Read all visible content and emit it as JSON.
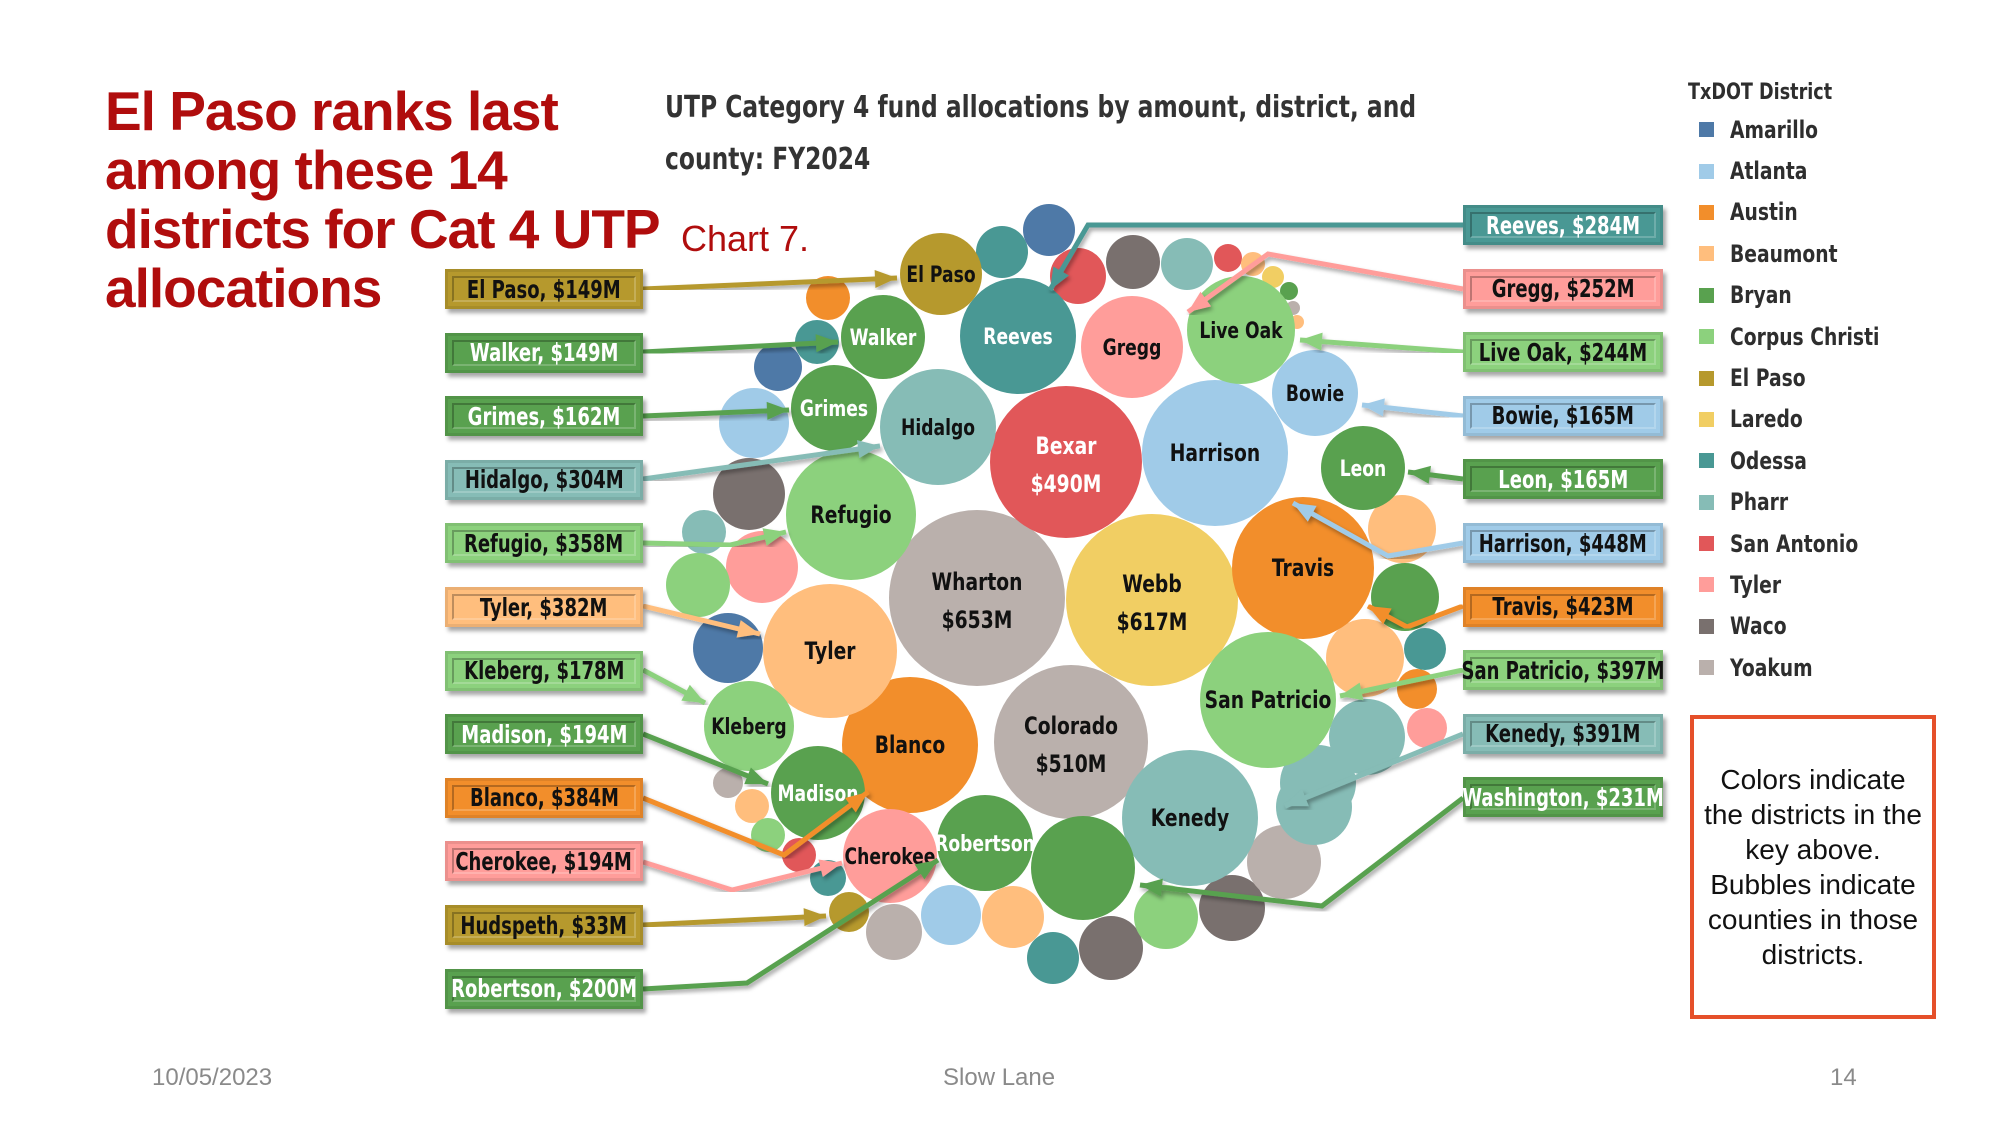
{
  "slide": {
    "title": "El Paso ranks last among these 14 districts for Cat 4 UTP allocations",
    "chart_label": "Chart 7.",
    "note": "Colors indicate the districts in the key above. Bubbles indicate counties in those districts.",
    "footer": {
      "date": "10/05/2023",
      "center": "Slow Lane",
      "page": "14"
    }
  },
  "colors": {
    "Amarillo": "#4e79a7",
    "Atlanta": "#a0cbe8",
    "Austin": "#f28e2b",
    "Beaumont": "#ffbe7d",
    "Bryan": "#59a14f",
    "Corpus Christi": "#8cd17d",
    "El Paso": "#b6992d",
    "Laredo": "#f1ce63",
    "Odessa": "#499894",
    "Pharr": "#86bcb6",
    "San Antonio": "#e15759",
    "Tyler": "#ff9d9a",
    "Waco": "#79706e",
    "Yoakum": "#bab0ac",
    "title_red": "#b00d0d",
    "note_border": "#e5502a"
  },
  "chart_data": {
    "type": "bubble",
    "title": "UTP Category 4 fund allocations by amount, district, and county: FY2024",
    "legend_title": "TxDOT District",
    "legend_position": "top-right",
    "legend": [
      "Amarillo",
      "Atlanta",
      "Austin",
      "Beaumont",
      "Bryan",
      "Corpus Christi",
      "El Paso",
      "Laredo",
      "Odessa",
      "Pharr",
      "San Antonio",
      "Tyler",
      "Waco",
      "Yoakum"
    ],
    "size_unit": "$M",
    "counties": [
      {
        "county": "Wharton",
        "district": "Yoakum",
        "value": 653,
        "label": "Wharton",
        "sublabel": "$653M",
        "text": "dark"
      },
      {
        "county": "Webb",
        "district": "Laredo",
        "value": 617,
        "label": "Webb",
        "sublabel": "$617M",
        "text": "dark"
      },
      {
        "county": "Colorado",
        "district": "Yoakum",
        "value": 510,
        "label": "Colorado",
        "sublabel": "$510M",
        "text": "dark"
      },
      {
        "county": "Bexar",
        "district": "San Antonio",
        "value": 490,
        "label": "Bexar",
        "sublabel": "$490M",
        "text": "light"
      },
      {
        "county": "Harrison",
        "district": "Atlanta",
        "value": 448,
        "label": "Harrison",
        "text": "dark"
      },
      {
        "county": "Travis",
        "district": "Austin",
        "value": 423,
        "label": "Travis",
        "text": "dark"
      },
      {
        "county": "San Patricio",
        "district": "Corpus Christi",
        "value": 397,
        "label": "San Patricio",
        "text": "dark"
      },
      {
        "county": "Kenedy",
        "district": "Pharr",
        "value": 391,
        "label": "Kenedy",
        "text": "dark"
      },
      {
        "county": "Blanco",
        "district": "Austin",
        "value": 384,
        "label": "Blanco",
        "text": "dark"
      },
      {
        "county": "Tyler",
        "district": "Beaumont",
        "value": 382,
        "label": "Tyler",
        "text": "dark"
      },
      {
        "county": "Refugio",
        "district": "Corpus Christi",
        "value": 358,
        "label": "Refugio",
        "text": "dark"
      },
      {
        "county": "Hidalgo",
        "district": "Pharr",
        "value": 304,
        "label": "Hidalgo",
        "text": "dark"
      },
      {
        "county": "Reeves",
        "district": "Odessa",
        "value": 284,
        "label": "Reeves",
        "text": "light"
      },
      {
        "county": "Gregg",
        "district": "Tyler",
        "value": 252,
        "label": "Gregg",
        "text": "dark"
      },
      {
        "county": "Live Oak",
        "district": "Corpus Christi",
        "value": 244,
        "label": "Live Oak",
        "text": "dark"
      },
      {
        "county": "Washington",
        "district": "Bryan",
        "value": 231,
        "label": "",
        "text": "light"
      },
      {
        "county": "Robertson",
        "district": "Bryan",
        "value": 200,
        "label": "Robertson",
        "text": "light"
      },
      {
        "county": "Madison",
        "district": "Bryan",
        "value": 194,
        "label": "Madison",
        "text": "light"
      },
      {
        "county": "Cherokee",
        "district": "Tyler",
        "value": 194,
        "label": "Cherokee",
        "text": "dark"
      },
      {
        "county": "Kleberg",
        "district": "Corpus Christi",
        "value": 178,
        "label": "Kleberg",
        "text": "dark"
      },
      {
        "county": "Bowie",
        "district": "Atlanta",
        "value": 165,
        "label": "Bowie",
        "text": "dark"
      },
      {
        "county": "Leon",
        "district": "Bryan",
        "value": 165,
        "label": "Leon",
        "text": "light"
      },
      {
        "county": "Grimes",
        "district": "Bryan",
        "value": 162,
        "label": "Grimes",
        "text": "light"
      },
      {
        "county": "El Paso",
        "district": "El Paso",
        "value": 149,
        "label": "El Paso",
        "text": "dark"
      },
      {
        "county": "Walker",
        "district": "Bryan",
        "value": 149,
        "label": "Walker",
        "text": "light"
      },
      {
        "county": "Hudspeth",
        "district": "El Paso",
        "value": 33,
        "label": "",
        "text": "dark"
      }
    ],
    "unlabeled_bubbles": [
      {
        "district": "Odessa"
      },
      {
        "district": "Amarillo"
      },
      {
        "district": "San Antonio"
      },
      {
        "district": "Waco"
      },
      {
        "district": "Pharr"
      },
      {
        "district": "San Antonio"
      },
      {
        "district": "Beaumont"
      },
      {
        "district": "Laredo"
      },
      {
        "district": "Bryan"
      },
      {
        "district": "Yoakum"
      },
      {
        "district": "Beaumont"
      },
      {
        "district": "Austin"
      },
      {
        "district": "Odessa"
      },
      {
        "district": "Amarillo"
      },
      {
        "district": "Atlanta"
      },
      {
        "district": "Waco"
      },
      {
        "district": "Pharr"
      },
      {
        "district": "Tyler"
      },
      {
        "district": "Corpus Christi"
      },
      {
        "district": "Amarillo"
      },
      {
        "district": "Yoakum"
      },
      {
        "district": "Beaumont"
      },
      {
        "district": "Corpus Christi"
      },
      {
        "district": "San Antonio"
      },
      {
        "district": "Odessa"
      },
      {
        "district": "Yoakum"
      },
      {
        "district": "Atlanta"
      },
      {
        "district": "Beaumont"
      },
      {
        "district": "Odessa"
      },
      {
        "district": "Waco"
      },
      {
        "district": "Corpus Christi"
      },
      {
        "district": "Waco"
      },
      {
        "district": "Yoakum"
      },
      {
        "district": "Pharr"
      },
      {
        "district": "Pharr"
      },
      {
        "district": "Pharr"
      },
      {
        "district": "Tyler"
      },
      {
        "district": "Austin"
      },
      {
        "district": "Beaumont"
      },
      {
        "district": "Odessa"
      },
      {
        "district": "Bryan"
      },
      {
        "district": "Beaumont"
      }
    ],
    "callouts_left": [
      {
        "text": "El Paso, $149M",
        "county": "El Paso",
        "district": "El Paso",
        "text_color": "dark"
      },
      {
        "text": "Walker, $149M",
        "county": "Walker",
        "district": "Bryan",
        "text_color": "light"
      },
      {
        "text": "Grimes, $162M",
        "county": "Grimes",
        "district": "Bryan",
        "text_color": "light"
      },
      {
        "text": "Hidalgo, $304M",
        "county": "Hidalgo",
        "district": "Pharr",
        "text_color": "dark"
      },
      {
        "text": "Refugio, $358M",
        "county": "Refugio",
        "district": "Corpus Christi",
        "text_color": "dark"
      },
      {
        "text": "Tyler, $382M",
        "county": "Tyler",
        "district": "Beaumont",
        "text_color": "dark"
      },
      {
        "text": "Kleberg, $178M",
        "county": "Kleberg",
        "district": "Corpus Christi",
        "text_color": "dark"
      },
      {
        "text": "Madison, $194M",
        "county": "Madison",
        "district": "Bryan",
        "text_color": "light"
      },
      {
        "text": "Blanco, $384M",
        "county": "Blanco",
        "district": "Austin",
        "text_color": "dark"
      },
      {
        "text": "Cherokee, $194M",
        "county": "Cherokee",
        "district": "Tyler",
        "text_color": "dark"
      },
      {
        "text": "Hudspeth, $33M",
        "county": "Hudspeth",
        "district": "El Paso",
        "text_color": "dark"
      },
      {
        "text": "Robertson, $200M",
        "county": "Robertson",
        "district": "Bryan",
        "text_color": "light"
      }
    ],
    "callouts_right": [
      {
        "text": "Reeves, $284M",
        "county": "Reeves",
        "district": "Odessa",
        "text_color": "light"
      },
      {
        "text": "Gregg, $252M",
        "county": "Gregg",
        "district": "Tyler",
        "text_color": "dark"
      },
      {
        "text": "Live Oak, $244M",
        "county": "Live Oak",
        "district": "Corpus Christi",
        "text_color": "dark"
      },
      {
        "text": "Bowie, $165M",
        "county": "Bowie",
        "district": "Atlanta",
        "text_color": "dark"
      },
      {
        "text": "Leon, $165M",
        "county": "Leon",
        "district": "Bryan",
        "text_color": "light"
      },
      {
        "text": "Harrison, $448M",
        "county": "Harrison",
        "district": "Atlanta",
        "text_color": "dark"
      },
      {
        "text": "Travis, $423M",
        "county": "Travis",
        "district": "Austin",
        "text_color": "dark"
      },
      {
        "text": "San Patricio, $397M",
        "county": "San Patricio",
        "district": "Corpus Christi",
        "text_color": "dark"
      },
      {
        "text": "Kenedy, $391M",
        "county": "Kenedy",
        "district": "Pharr",
        "text_color": "dark"
      },
      {
        "text": "Washington, $231M",
        "county": "Washington",
        "district": "Bryan",
        "text_color": "light"
      }
    ]
  }
}
